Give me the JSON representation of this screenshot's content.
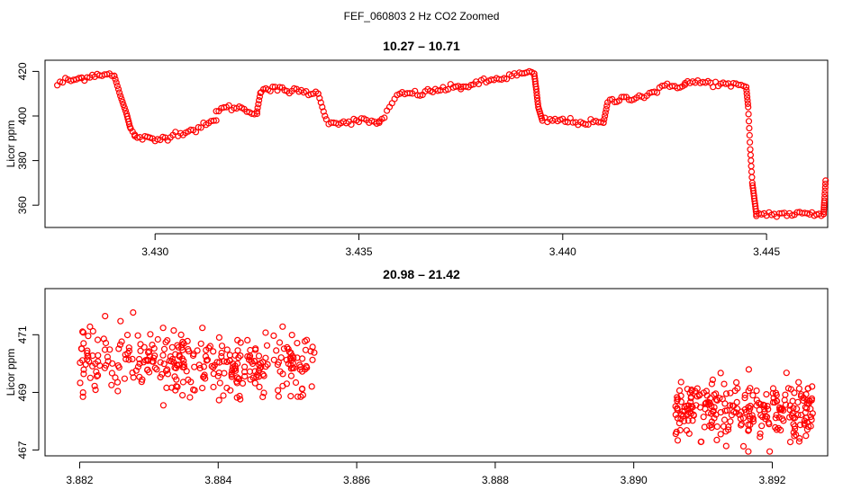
{
  "figure": {
    "title": "FEF_060803  2 Hz CO2 Zoomed"
  },
  "chart_data": [
    {
      "type": "scatter",
      "title": "10.27 – 10.71",
      "xlabel": "",
      "ylabel": "Licor ppm",
      "xlim": [
        3.4273,
        3.4465
      ],
      "ylim": [
        350,
        425
      ],
      "x_ticks": [
        "3.430",
        "3.435",
        "3.440",
        "3.445"
      ],
      "x_tick_values": [
        3.43,
        3.435,
        3.44,
        3.445
      ],
      "y_ticks": [
        "360",
        "380",
        "400",
        "420"
      ],
      "y_tick_values": [
        360,
        380,
        400,
        420
      ],
      "grid": false,
      "marker_color": "#ff0000",
      "segments": [
        {
          "x": [
            3.4276,
            3.4278,
            3.428,
            3.4282
          ],
          "y": [
            414,
            416,
            416,
            417
          ]
        },
        {
          "x": [
            3.4282,
            3.4284,
            3.4287,
            3.429
          ],
          "y": [
            417,
            418,
            419,
            418
          ]
        },
        {
          "x": [
            3.429,
            3.42915,
            3.4293,
            3.4294,
            3.4295
          ],
          "y": [
            418,
            409,
            401,
            394,
            391
          ]
        },
        {
          "x": [
            3.4295,
            3.43,
            3.4305,
            3.431,
            3.4315
          ],
          "y": [
            391,
            389,
            392,
            394,
            398
          ]
        },
        {
          "x": [
            3.4315,
            3.432,
            3.4325
          ],
          "y": [
            403,
            404,
            401
          ]
        },
        {
          "x": [
            3.4325,
            3.4326,
            3.433,
            3.434
          ],
          "y": [
            402,
            412,
            412,
            410
          ]
        },
        {
          "x": [
            3.434,
            3.4342,
            3.4345,
            3.435,
            3.4355
          ],
          "y": [
            410,
            398,
            397,
            398,
            397
          ]
        },
        {
          "x": [
            3.4355,
            3.436,
            3.4365,
            3.437,
            3.4375
          ],
          "y": [
            397,
            410,
            410,
            412,
            413
          ]
        },
        {
          "x": [
            3.4375,
            3.438,
            3.4385,
            3.439,
            3.4393
          ],
          "y": [
            413,
            415,
            417,
            419,
            419
          ]
        },
        {
          "x": [
            3.4393,
            3.43935,
            3.4394,
            3.4395,
            3.44,
            3.4405,
            3.441
          ],
          "y": [
            419,
            412,
            404,
            398,
            398,
            397,
            397
          ]
        },
        {
          "x": [
            3.441,
            3.4411,
            3.4415,
            3.442,
            3.4425,
            3.443
          ],
          "y": [
            397,
            406,
            408,
            409,
            413,
            414
          ]
        },
        {
          "x": [
            3.443,
            3.4435,
            3.444,
            3.4445
          ],
          "y": [
            415,
            415,
            414,
            413
          ]
        },
        {
          "x": [
            3.4445,
            3.44455,
            3.4446,
            3.44465,
            3.4447,
            3.44475
          ],
          "y": [
            413,
            404,
            385,
            370,
            363,
            356
          ]
        },
        {
          "x": [
            3.44475,
            3.445,
            3.4455,
            3.446,
            3.4464
          ],
          "y": [
            356,
            356,
            356,
            356,
            356
          ]
        },
        {
          "x": [
            3.4464,
            3.44642,
            3.44645
          ],
          "y": [
            356,
            362,
            371
          ]
        }
      ]
    },
    {
      "type": "scatter",
      "title": "20.98 – 21.42",
      "xlabel": "",
      "ylabel": "Licor ppm",
      "xlim": [
        3.8815,
        3.8928
      ],
      "ylim": [
        466.8,
        472.6
      ],
      "x_ticks": [
        "3.882",
        "3.884",
        "3.886",
        "3.888",
        "3.890",
        "3.892"
      ],
      "x_tick_values": [
        3.882,
        3.884,
        3.886,
        3.888,
        3.89,
        3.892
      ],
      "y_ticks": [
        "467",
        "469",
        "471"
      ],
      "y_tick_values": [
        467,
        469,
        471
      ],
      "grid": false,
      "marker_color": "#ff0000",
      "clusters": [
        {
          "x_range": [
            3.882,
            3.8854
          ],
          "y_mean": 470.0,
          "y_sd": 0.55,
          "count": 330
        },
        {
          "x_range": [
            3.8906,
            3.8926
          ],
          "y_mean": 468.4,
          "y_sd": 0.5,
          "count": 260
        }
      ]
    }
  ]
}
